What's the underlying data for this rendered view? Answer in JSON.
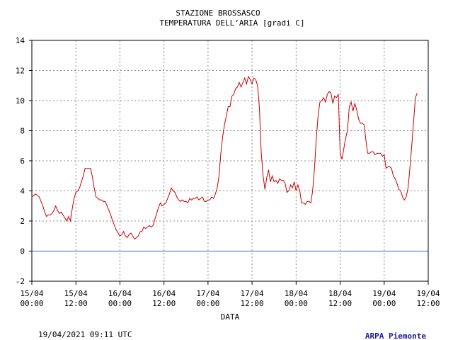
{
  "chart_data": {
    "type": "line",
    "title": "STAZIONE BROSSASCO",
    "subtitle": "TEMPERATURA DELL’ARIA [gradi C]",
    "xlabel": "DATA",
    "ylabel": "",
    "ylim": [
      -2,
      14
    ],
    "yticks": [
      -2,
      0,
      2,
      4,
      6,
      8,
      10,
      12,
      14
    ],
    "xlim_hours": [
      0,
      108
    ],
    "xticks": [
      {
        "h": 0,
        "d": "15/04",
        "t": "00:00"
      },
      {
        "h": 12,
        "d": "15/04",
        "t": "12:00"
      },
      {
        "h": 24,
        "d": "16/04",
        "t": "00:00"
      },
      {
        "h": 36,
        "d": "16/04",
        "t": "12:00"
      },
      {
        "h": 48,
        "d": "17/04",
        "t": "00:00"
      },
      {
        "h": 60,
        "d": "17/04",
        "t": "12:00"
      },
      {
        "h": 72,
        "d": "18/04",
        "t": "00:00"
      },
      {
        "h": 84,
        "d": "18/04",
        "t": "12:00"
      },
      {
        "h": 96,
        "d": "19/04",
        "t": "00:00"
      },
      {
        "h": 108,
        "d": "19/04",
        "t": "12:00"
      }
    ],
    "grid": true,
    "reference_line": {
      "y": 0,
      "color": "#1f6fd6"
    },
    "series": [
      {
        "color": "#cc0000",
        "x_hours": [
          0,
          0.5,
          1,
          1.5,
          2,
          2.5,
          3,
          3.5,
          4,
          4.5,
          5,
          5.5,
          6,
          6.5,
          7,
          7.5,
          8,
          8.5,
          9,
          9.5,
          10,
          10.5,
          11,
          11.5,
          12,
          12.5,
          13,
          13.5,
          14,
          14.5,
          15,
          15.5,
          16,
          16.5,
          17,
          17.5,
          18,
          18.5,
          19,
          19.5,
          20,
          20.5,
          21,
          21.5,
          22,
          22.5,
          23,
          23.5,
          24,
          24.5,
          25,
          25.5,
          26,
          26.5,
          27,
          27.5,
          28,
          28.5,
          29,
          29.5,
          30,
          30.5,
          31,
          31.5,
          32,
          32.5,
          33,
          33.5,
          34,
          34.5,
          35,
          35.5,
          36,
          36.5,
          37,
          37.5,
          38,
          38.5,
          39,
          39.5,
          40,
          40.5,
          41,
          41.5,
          42,
          42.5,
          43,
          43.5,
          44,
          44.5,
          45,
          45.5,
          46,
          46.5,
          47,
          47.5,
          48,
          48.5,
          49,
          49.5,
          50,
          50.5,
          51,
          51.5,
          52,
          52.5,
          53,
          53.5,
          54,
          54.5,
          55,
          55.5,
          56,
          56.5,
          57,
          57.5,
          58,
          58.5,
          59,
          59.5,
          60,
          60.5,
          61,
          61.5,
          62,
          62.5,
          63,
          63.5,
          64,
          64.5,
          65,
          65.5,
          66,
          66.5,
          67,
          67.5,
          68,
          68.5,
          69,
          69.5,
          70,
          70.5,
          71,
          71.5,
          72,
          72.5,
          73,
          73.5,
          74,
          74.5,
          75,
          75.5,
          76,
          76.5,
          77,
          77.5,
          78,
          78.5,
          79,
          79.5,
          80,
          80.5,
          81,
          81.5,
          82,
          82.5,
          83,
          83.5,
          84,
          84.5,
          85,
          85.5,
          86,
          86.5,
          87,
          87.5,
          88,
          88.5,
          89,
          89.5,
          90,
          90.5,
          91,
          91.5,
          92,
          92.5,
          93,
          93.5,
          94,
          94.5,
          95,
          95.5,
          96,
          96.5,
          97,
          97.5,
          98,
          98.5,
          99,
          99.5,
          100,
          100.5,
          101,
          101.5,
          102,
          102.5,
          103,
          103.5,
          104,
          104.5,
          105
        ],
        "values": [
          3.6,
          3.7,
          3.8,
          3.7,
          3.6,
          3.3,
          3.0,
          2.6,
          2.3,
          2.4,
          2.4,
          2.5,
          2.7,
          3.0,
          2.7,
          2.5,
          2.6,
          2.4,
          2.2,
          2.0,
          2.3,
          2.0,
          2.8,
          3.5,
          3.9,
          4.0,
          4.2,
          4.6,
          5.0,
          5.5,
          5.5,
          5.5,
          5.5,
          4.9,
          4.2,
          3.6,
          3.5,
          3.4,
          3.4,
          3.3,
          3.3,
          3.0,
          2.7,
          2.4,
          2.0,
          1.7,
          1.4,
          1.2,
          1.0,
          1.1,
          1.3,
          1.0,
          0.9,
          1.1,
          1.2,
          1.0,
          0.8,
          0.9,
          1.0,
          1.3,
          1.3,
          1.6,
          1.5,
          1.6,
          1.7,
          1.6,
          1.7,
          2.1,
          2.5,
          2.9,
          3.2,
          3.0,
          3.1,
          3.2,
          3.5,
          3.8,
          4.2,
          4.0,
          3.9,
          3.6,
          3.4,
          3.3,
          3.4,
          3.3,
          3.3,
          3.2,
          3.5,
          3.4,
          3.5,
          3.5,
          3.6,
          3.4,
          3.5,
          3.6,
          3.3,
          3.3,
          3.4,
          3.4,
          3.6,
          3.5,
          3.8,
          4.2,
          5.0,
          6.5,
          7.6,
          8.4,
          9.0,
          9.6,
          9.6,
          10.3,
          10.4,
          10.8,
          10.9,
          11.2,
          10.9,
          11.2,
          11.5,
          11.1,
          11.6,
          11.4,
          11.1,
          11.5,
          11.4,
          11.0,
          9.5,
          6.5,
          5.0,
          4.1,
          4.9,
          5.4,
          4.6,
          5.0,
          4.6,
          4.7,
          4.5,
          4.8,
          4.7,
          4.7,
          4.5,
          3.9,
          4.0,
          4.4,
          4.2,
          4.6,
          4.0,
          4.4,
          4.0,
          3.2,
          3.2,
          3.1,
          3.3,
          3.3,
          3.2,
          4.0,
          5.5,
          7.5,
          9.0,
          9.9,
          10.0,
          10.2,
          9.9,
          10.4,
          10.6,
          10.5,
          9.8,
          10.3,
          10.2,
          10.4,
          6.5,
          6.1,
          6.8,
          7.5,
          8.0,
          9.6,
          9.9,
          9.3,
          9.8,
          9.4,
          8.8,
          8.5,
          8.5,
          8.4,
          7.4,
          6.5,
          6.5,
          6.6,
          6.6,
          6.4,
          6.5,
          6.5,
          6.5,
          6.3,
          6.4,
          5.5,
          5.6,
          5.6,
          5.5,
          5.0,
          4.8,
          4.5,
          4.1,
          4.0,
          3.6,
          3.4,
          3.6,
          4.2,
          5.5,
          7.0,
          8.6,
          10.2,
          10.5
        ]
      }
    ]
  },
  "footer": {
    "timestamp": "19/04/2021 09:11 UTC",
    "brand": "ARPA Piemonte"
  }
}
